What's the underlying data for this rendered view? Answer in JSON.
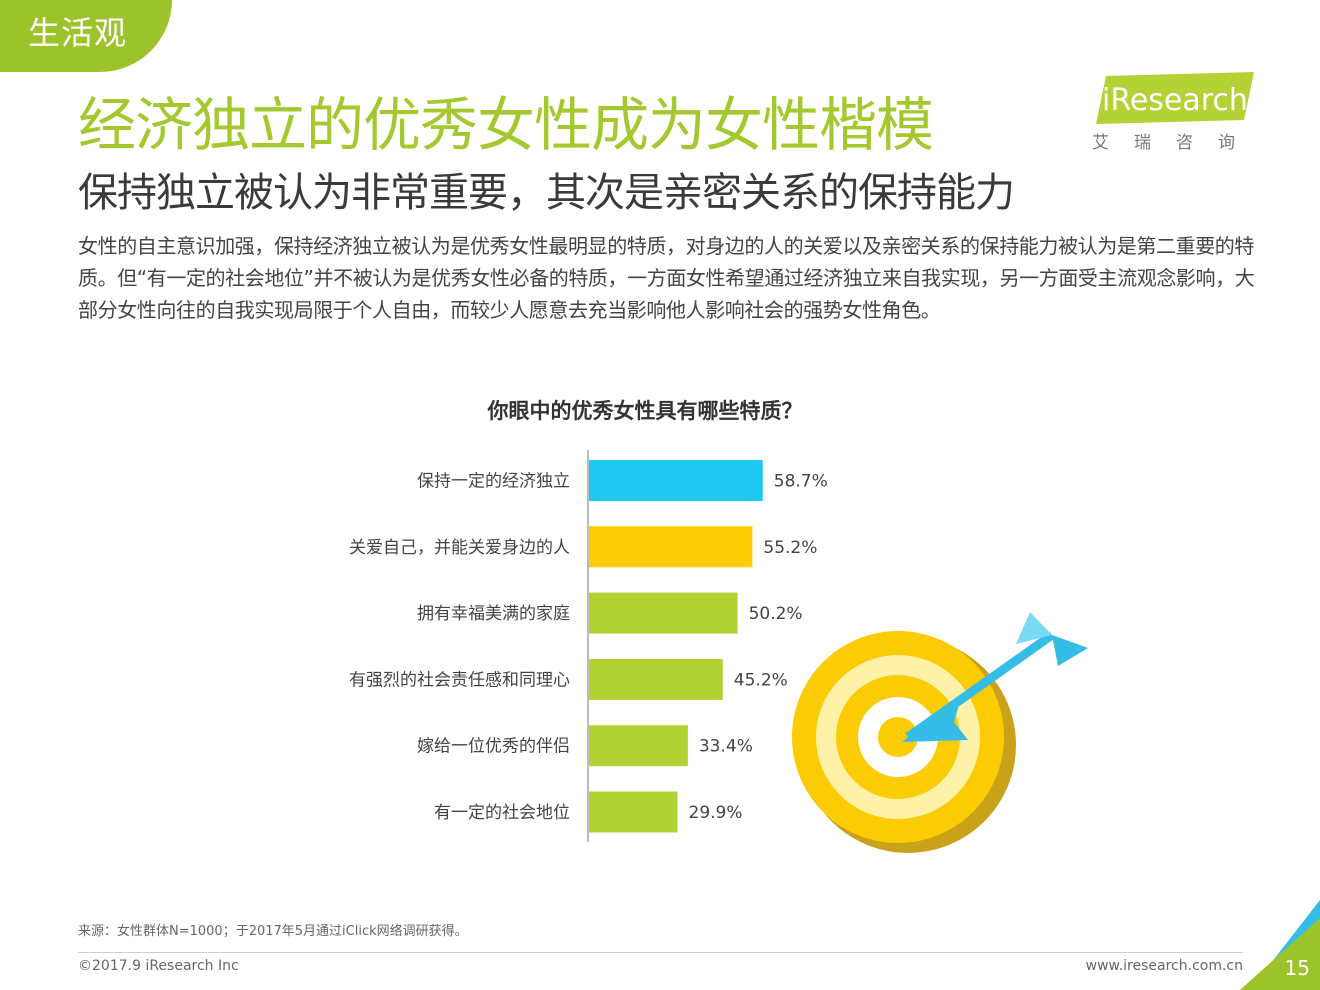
{
  "section_tag": "生活观",
  "title": "经济独立的优秀女性成为女性楷模",
  "subtitle": "保持独立被认为非常重要，其次是亲密关系的保持能力",
  "description": "女性的自主意识加强，保持经济独立被认为是优秀女性最明显的特质，对身边的人的关爱以及亲密关系的保持能力被认为是第二重要的特质。但“有一定的社会地位”并不被认为是优秀女性必备的特质，一方面女性希望通过经济独立来自我实现，另一方面受主流观念影响，大部分女性向往的自我实现局限于个人自由，而较少人愿意去充当影响他人影响社会的强势女性角色。",
  "logo": {
    "brand": "iResearch",
    "cn": "艾瑞咨询"
  },
  "chart_title": "你眼中的优秀女性具有哪些特质？",
  "source": "来源：女性群体N=1000；于2017年5月通过iClick网络调研获得。",
  "copyright": "©2017.9 iResearch Inc",
  "website": "www.iresearch.com.cn",
  "page_number": "15",
  "colors": {
    "green": "#a3c92f",
    "blue": "#1ec8f0",
    "yellow": "#fbcc04",
    "bar_green": "#b3d235"
  },
  "chart_data": {
    "type": "bar",
    "orientation": "horizontal",
    "title": "你眼中的优秀女性具有哪些特质？",
    "categories": [
      "保持一定的经济独立",
      "关爱自己，并能关爱身边的人",
      "拥有幸福美满的家庭",
      "有强烈的社会责任感和同理心",
      "嫁给一位优秀的伴侣",
      "有一定的社会地位"
    ],
    "values": [
      58.7,
      55.2,
      50.2,
      45.2,
      33.4,
      29.9
    ],
    "value_labels": [
      "58.7%",
      "55.2%",
      "50.2%",
      "45.2%",
      "33.4%",
      "29.9%"
    ],
    "bar_colors": [
      "#1ec8f0",
      "#fbcc04",
      "#b3d235",
      "#b3d235",
      "#b3d235",
      "#b3d235"
    ],
    "unit": "%",
    "grid": false,
    "legend": "none"
  }
}
